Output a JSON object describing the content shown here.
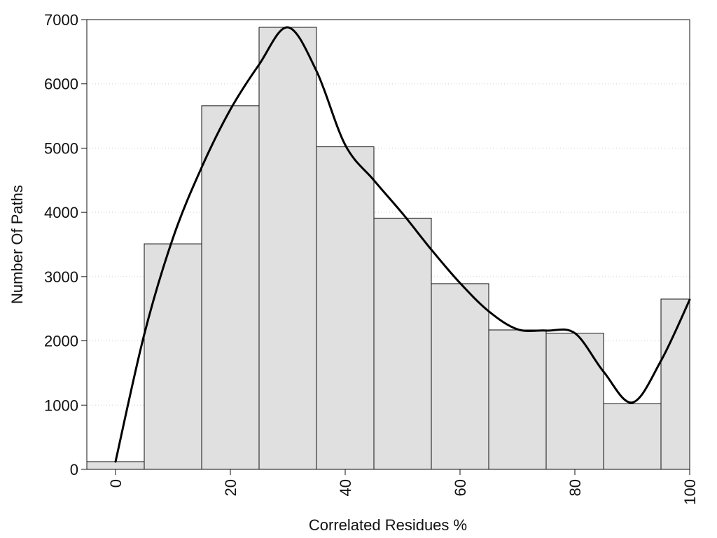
{
  "chart_data": {
    "type": "bar",
    "title": "",
    "xlabel": "Correlated Residues %",
    "ylabel": "Number Of Paths",
    "xlim": [
      -5,
      100
    ],
    "ylim": [
      0,
      7000
    ],
    "x_ticks": [
      0,
      20,
      40,
      60,
      80,
      100
    ],
    "y_ticks": [
      0,
      1000,
      2000,
      3000,
      4000,
      5000,
      6000,
      7000
    ],
    "grid": "horizontal-dotted",
    "bin_width": 10,
    "bins": [
      {
        "start": -5,
        "end": 5,
        "value": 120
      },
      {
        "start": 5,
        "end": 15,
        "value": 3510
      },
      {
        "start": 15,
        "end": 25,
        "value": 5660
      },
      {
        "start": 25,
        "end": 35,
        "value": 6880
      },
      {
        "start": 35,
        "end": 45,
        "value": 5020
      },
      {
        "start": 45,
        "end": 55,
        "value": 3910
      },
      {
        "start": 55,
        "end": 65,
        "value": 2890
      },
      {
        "start": 65,
        "end": 75,
        "value": 2170
      },
      {
        "start": 75,
        "end": 85,
        "value": 2120
      },
      {
        "start": 85,
        "end": 95,
        "value": 1020
      },
      {
        "start": 95,
        "end": 100,
        "value": 2650
      }
    ],
    "curve": {
      "x": [
        0,
        5,
        10,
        15,
        20,
        25,
        30,
        35,
        40,
        45,
        50,
        55,
        60,
        65,
        70,
        75,
        80,
        85,
        90,
        95,
        100
      ],
      "y": [
        120,
        2100,
        3600,
        4700,
        5600,
        6300,
        6880,
        6200,
        5050,
        4500,
        3980,
        3420,
        2900,
        2460,
        2180,
        2160,
        2120,
        1520,
        1040,
        1690,
        2640
      ]
    },
    "colors": {
      "bar_fill": "#e0e0e0",
      "bar_stroke": "#111111",
      "curve": "#000000",
      "grid": "#cfcfcf"
    }
  }
}
